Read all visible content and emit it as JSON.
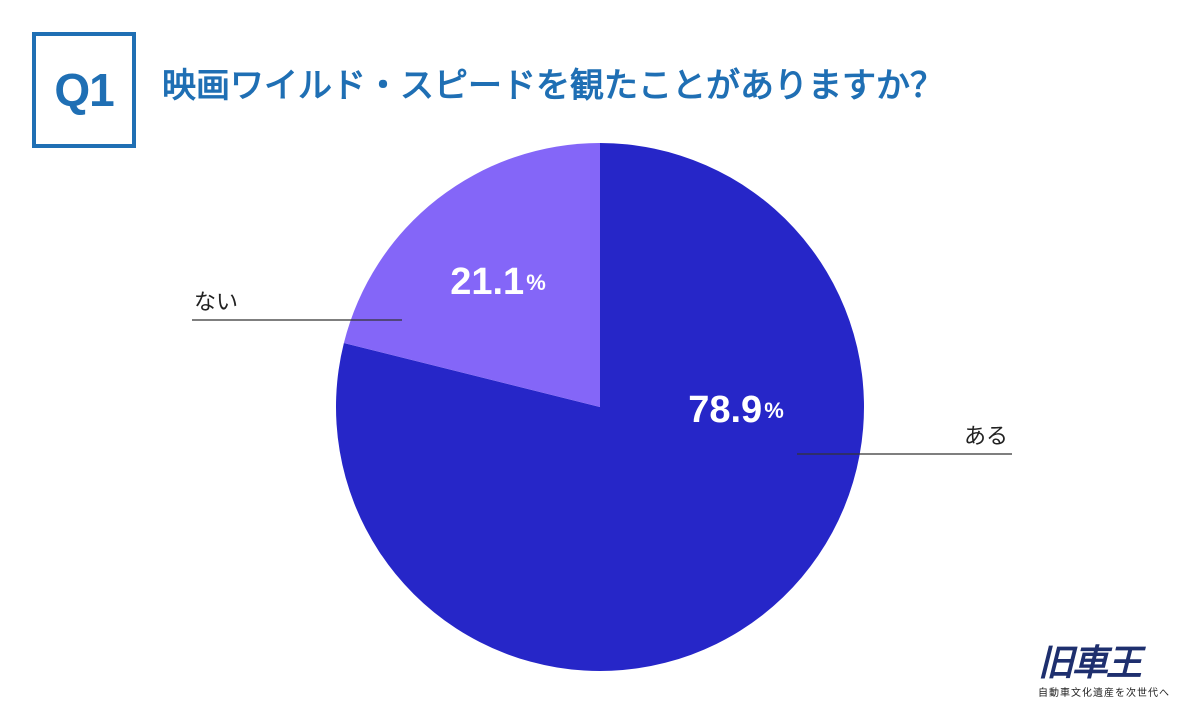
{
  "header": {
    "q_label": "Q1",
    "question": "映画ワイルド・スピードを観たことがありますか？"
  },
  "colors": {
    "accent": "#1f6fb4",
    "slice_aru": "#2626c8",
    "slice_nai": "#8466f8",
    "leader": "#333333"
  },
  "chart_data": {
    "type": "pie",
    "title": "映画ワイルド・スピードを観たことがありますか？",
    "slices": [
      {
        "label": "ある",
        "value": 78.9,
        "display_value": "78.9",
        "unit": "%",
        "color": "#2626c8"
      },
      {
        "label": "ない",
        "value": 21.1,
        "display_value": "21.1",
        "unit": "%",
        "color": "#8466f8"
      }
    ],
    "start": "12 o'clock",
    "direction": "clockwise",
    "legend": "none (leader-line labels)"
  },
  "logo": {
    "mark": "旧車王",
    "tagline": "自動車文化遺産を次世代へ"
  }
}
